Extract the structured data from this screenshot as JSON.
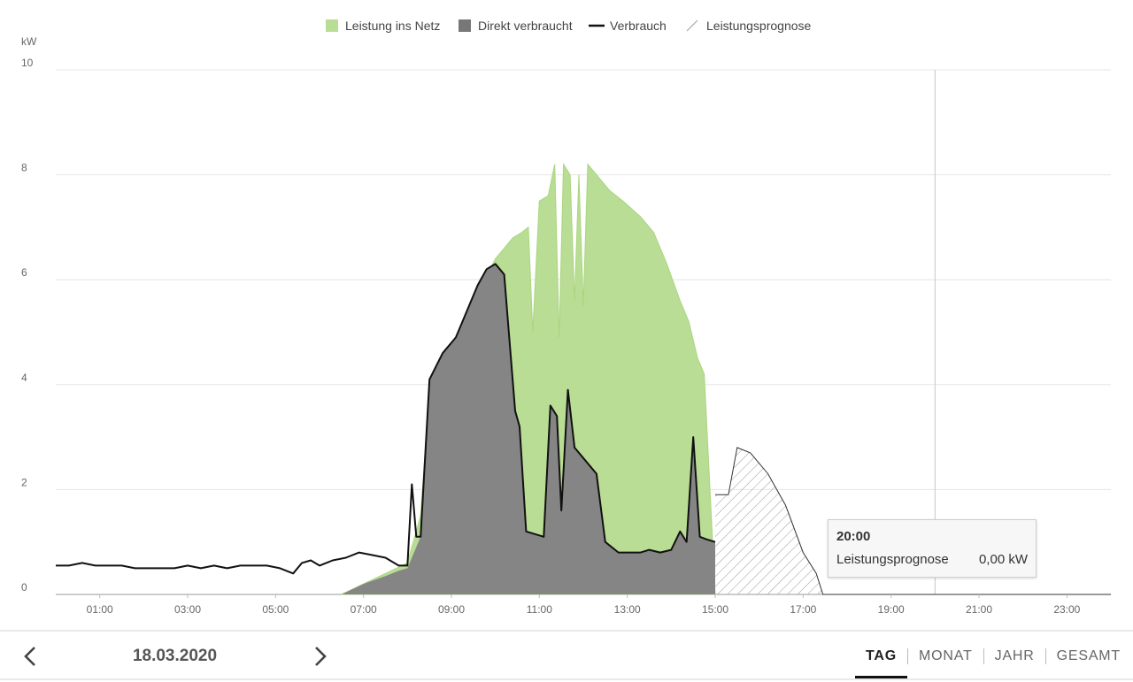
{
  "chart_data": {
    "type": "area",
    "ylabel": "kW",
    "ylim": [
      0,
      10
    ],
    "yticks": [
      "0",
      "2",
      "4",
      "6",
      "8",
      "10"
    ],
    "xlim": [
      "00:00",
      "24:00"
    ],
    "xticks": [
      "01:00",
      "03:00",
      "05:00",
      "07:00",
      "09:00",
      "11:00",
      "13:00",
      "15:00",
      "17:00",
      "19:00",
      "21:00",
      "23:00"
    ],
    "grid": true,
    "legend_position": "top",
    "legend": [
      {
        "name": "Leistung ins Netz",
        "kind": "area",
        "color": "#b9dd94"
      },
      {
        "name": "Direkt verbraucht",
        "kind": "area",
        "color": "#777777"
      },
      {
        "name": "Verbrauch",
        "kind": "line",
        "color": "#111111"
      },
      {
        "name": "Leistungsprognose",
        "kind": "hatched",
        "color": "#aaaaaa"
      }
    ],
    "series": [
      {
        "name": "Leistung ins Netz",
        "values": [
          [
            6.5,
            0
          ],
          [
            7.0,
            0.2
          ],
          [
            7.5,
            0.4
          ],
          [
            8.0,
            0.6
          ],
          [
            8.3,
            1.5
          ],
          [
            8.5,
            3.9
          ],
          [
            8.8,
            4.5
          ],
          [
            9.2,
            5.0
          ],
          [
            9.5,
            5.6
          ],
          [
            10.0,
            6.4
          ],
          [
            10.4,
            6.8
          ],
          [
            10.6,
            6.9
          ],
          [
            10.75,
            7.0
          ],
          [
            10.85,
            5.0
          ],
          [
            11.0,
            7.5
          ],
          [
            11.2,
            7.6
          ],
          [
            11.35,
            8.2
          ],
          [
            11.45,
            4.9
          ],
          [
            11.55,
            8.2
          ],
          [
            11.7,
            8.0
          ],
          [
            11.8,
            5.6
          ],
          [
            11.9,
            8.0
          ],
          [
            12.0,
            5.5
          ],
          [
            12.1,
            8.2
          ],
          [
            12.3,
            8.0
          ],
          [
            12.6,
            7.7
          ],
          [
            12.9,
            7.5
          ],
          [
            13.3,
            7.2
          ],
          [
            13.6,
            6.9
          ],
          [
            13.9,
            6.3
          ],
          [
            14.2,
            5.6
          ],
          [
            14.4,
            5.2
          ],
          [
            14.6,
            4.5
          ],
          [
            14.75,
            4.2
          ],
          [
            15.0,
            0
          ]
        ]
      },
      {
        "name": "Direkt verbraucht",
        "values": [
          [
            6.5,
            0
          ],
          [
            7.0,
            0.2
          ],
          [
            7.5,
            0.35
          ],
          [
            7.8,
            0.45
          ],
          [
            8.0,
            0.5
          ],
          [
            8.3,
            1.1
          ],
          [
            8.5,
            4.1
          ],
          [
            8.8,
            4.6
          ],
          [
            9.1,
            4.9
          ],
          [
            9.4,
            5.5
          ],
          [
            9.6,
            5.9
          ],
          [
            9.8,
            6.2
          ],
          [
            10.0,
            6.3
          ],
          [
            10.2,
            6.1
          ],
          [
            10.45,
            3.5
          ],
          [
            10.55,
            3.2
          ],
          [
            10.7,
            1.2
          ],
          [
            10.9,
            1.15
          ],
          [
            11.1,
            1.1
          ],
          [
            11.25,
            3.6
          ],
          [
            11.4,
            3.4
          ],
          [
            11.5,
            1.6
          ],
          [
            11.65,
            3.9
          ],
          [
            11.8,
            2.8
          ],
          [
            12.0,
            2.6
          ],
          [
            12.3,
            2.3
          ],
          [
            12.5,
            1.0
          ],
          [
            12.8,
            0.8
          ],
          [
            13.0,
            0.8
          ],
          [
            13.3,
            0.8
          ],
          [
            13.5,
            0.85
          ],
          [
            13.75,
            0.8
          ],
          [
            14.0,
            0.85
          ],
          [
            14.2,
            1.2
          ],
          [
            14.35,
            1.0
          ],
          [
            14.5,
            3.0
          ],
          [
            14.65,
            1.1
          ],
          [
            14.8,
            1.05
          ],
          [
            15.0,
            1.0
          ],
          [
            15.0,
            0
          ]
        ]
      },
      {
        "name": "Verbrauch",
        "values": [
          [
            0.0,
            0.55
          ],
          [
            0.3,
            0.55
          ],
          [
            0.6,
            0.6
          ],
          [
            0.9,
            0.55
          ],
          [
            1.2,
            0.55
          ],
          [
            1.5,
            0.55
          ],
          [
            1.8,
            0.5
          ],
          [
            2.1,
            0.5
          ],
          [
            2.4,
            0.5
          ],
          [
            2.7,
            0.5
          ],
          [
            3.0,
            0.55
          ],
          [
            3.3,
            0.5
          ],
          [
            3.6,
            0.55
          ],
          [
            3.9,
            0.5
          ],
          [
            4.2,
            0.55
          ],
          [
            4.5,
            0.55
          ],
          [
            4.8,
            0.55
          ],
          [
            5.1,
            0.5
          ],
          [
            5.4,
            0.4
          ],
          [
            5.6,
            0.6
          ],
          [
            5.8,
            0.65
          ],
          [
            6.0,
            0.55
          ],
          [
            6.3,
            0.65
          ],
          [
            6.6,
            0.7
          ],
          [
            6.9,
            0.8
          ],
          [
            7.2,
            0.75
          ],
          [
            7.5,
            0.7
          ],
          [
            7.8,
            0.55
          ],
          [
            8.0,
            0.55
          ],
          [
            8.1,
            2.1
          ],
          [
            8.2,
            1.1
          ],
          [
            8.3,
            1.1
          ],
          [
            8.5,
            4.1
          ],
          [
            8.8,
            4.6
          ],
          [
            9.1,
            4.9
          ],
          [
            9.4,
            5.5
          ],
          [
            9.6,
            5.9
          ],
          [
            9.8,
            6.2
          ],
          [
            10.0,
            6.3
          ],
          [
            10.2,
            6.1
          ],
          [
            10.45,
            3.5
          ],
          [
            10.55,
            3.2
          ],
          [
            10.7,
            1.2
          ],
          [
            10.9,
            1.15
          ],
          [
            11.1,
            1.1
          ],
          [
            11.25,
            3.6
          ],
          [
            11.4,
            3.4
          ],
          [
            11.5,
            1.6
          ],
          [
            11.65,
            3.9
          ],
          [
            11.8,
            2.8
          ],
          [
            12.0,
            2.6
          ],
          [
            12.3,
            2.3
          ],
          [
            12.5,
            1.0
          ],
          [
            12.8,
            0.8
          ],
          [
            13.0,
            0.8
          ],
          [
            13.3,
            0.8
          ],
          [
            13.5,
            0.85
          ],
          [
            13.75,
            0.8
          ],
          [
            14.0,
            0.85
          ],
          [
            14.2,
            1.2
          ],
          [
            14.35,
            1.0
          ],
          [
            14.5,
            3.0
          ],
          [
            14.65,
            1.1
          ],
          [
            14.8,
            1.05
          ],
          [
            15.0,
            1.0
          ]
        ]
      },
      {
        "name": "Leistungsprognose",
        "values": [
          [
            15.0,
            1.9
          ],
          [
            15.3,
            1.9
          ],
          [
            15.5,
            2.8
          ],
          [
            15.8,
            2.7
          ],
          [
            16.2,
            2.3
          ],
          [
            16.6,
            1.7
          ],
          [
            17.0,
            0.8
          ],
          [
            17.3,
            0.4
          ],
          [
            17.45,
            0
          ],
          [
            24.0,
            0
          ]
        ]
      }
    ],
    "tooltip": {
      "time": "20:00",
      "series": "Leistungsprognose",
      "value": "0,00 kW"
    },
    "crosshair_x": "20:00"
  },
  "footer": {
    "date": "18.03.2020",
    "prev_icon": "chevron-left-icon",
    "next_icon": "chevron-right-icon",
    "tabs": [
      "TAG",
      "MONAT",
      "JAHR",
      "GESAMT"
    ],
    "active_tab": "TAG"
  }
}
